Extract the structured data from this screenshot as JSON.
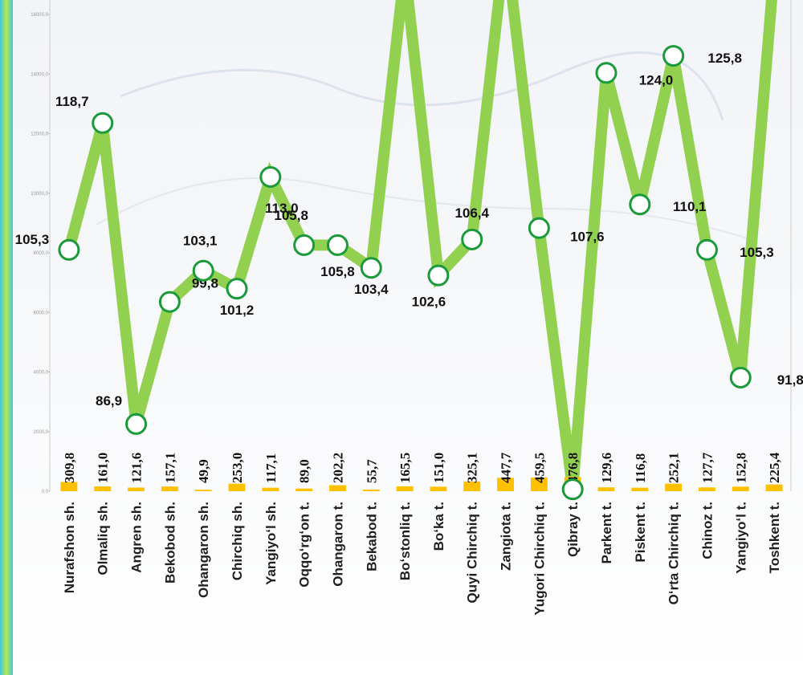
{
  "chart_data": {
    "type": "bar-line",
    "categories": [
      "Nurafshon sh.",
      "Olmaliq sh.",
      "Angren sh.",
      "Bekobod sh.",
      "Ohangaron sh.",
      "Chirchiq sh.",
      "Yangiyo‘l sh.",
      "Oqqo‘rg‘on t.",
      "Ohangaron t.",
      "Bekabod t.",
      "Bo‘stonliq t.",
      "Bo‘ka t.",
      "Quyi Chirchiq t.",
      "Zangiota t.",
      "Yugori Chirchiq t.",
      "Qibray t.",
      "Parkent t.",
      "Piskent t.",
      "O‘rta Chirchiq t.",
      "Chinoz t.",
      "Yangiyo‘l t.",
      "Toshkent t."
    ],
    "series": [
      {
        "type": "bar",
        "color": "#ffc000",
        "values": [
          309.8,
          161.0,
          121.6,
          157.1,
          49.9,
          253.0,
          117.1,
          89.0,
          202.2,
          55.7,
          165.5,
          151.0,
          325.1,
          447.7,
          459.5,
          476.8,
          129.6,
          116.8,
          252.1,
          127.7,
          152.8,
          225.4
        ],
        "value_labels": [
          "309,8",
          "161,0",
          "121,6",
          "157,1",
          "49,9",
          "253,0",
          "117,1",
          "89,0",
          "202,2",
          "55,7",
          "165,5",
          "151,0",
          "325,1",
          "447,7",
          "459,5",
          "476,8",
          "129,6",
          "116,8",
          "252,1",
          "127,7",
          "152,8",
          "225,4"
        ]
      },
      {
        "type": "line",
        "axis": "y2",
        "color": "#92d050",
        "values": [
          105.3,
          118.7,
          86.9,
          99.8,
          103.1,
          101.2,
          113.0,
          105.8,
          105.8,
          103.4,
          135,
          102.6,
          106.4,
          138,
          107.6,
          80,
          124.0,
          110.1,
          125.8,
          105.3,
          91.8,
          135
        ],
        "value_labels": [
          "105,3",
          "118,7",
          "86,9",
          "99,8",
          "103,1",
          "101,2",
          "113,0",
          "105,8",
          "105,8",
          "103,4",
          null,
          "102,6",
          "106,4",
          null,
          "107,6",
          null,
          "124,0",
          "110,1",
          "125,8",
          "105,3",
          "91,8",
          null
        ]
      }
    ],
    "ylim": [
      0,
      16485
    ],
    "yticks": [
      {
        "value": 0,
        "label": "0,0"
      },
      {
        "value": 2000,
        "label": "2000,0"
      },
      {
        "value": 4000,
        "label": "4000,0"
      },
      {
        "value": 6000,
        "label": "6000,0"
      },
      {
        "value": 8000,
        "label": "8000,0"
      },
      {
        "value": 10000,
        "label": "10000,0"
      },
      {
        "value": 12000,
        "label": "12000,0"
      },
      {
        "value": 14000,
        "label": "14000,0"
      },
      {
        "value": 16000,
        "label": "16000,0"
      }
    ],
    "y2lim": [
      79.8,
      131.7
    ]
  }
}
